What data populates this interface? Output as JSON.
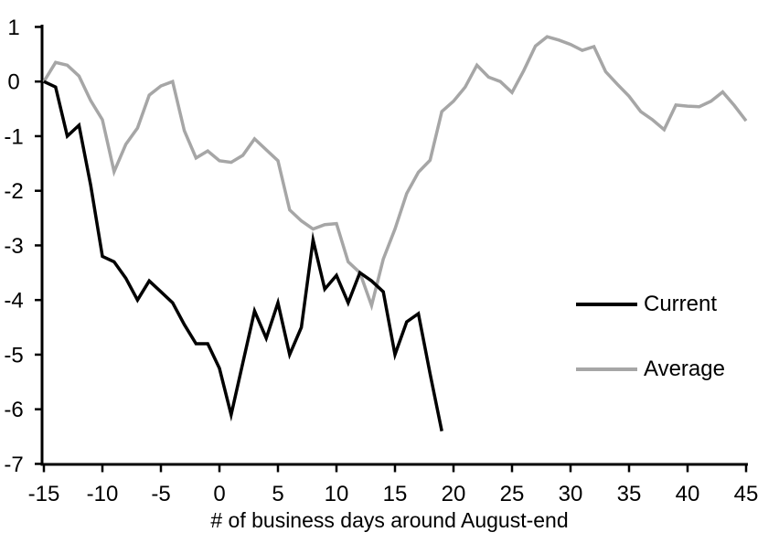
{
  "background": "#ffffff",
  "chart_data": {
    "type": "line",
    "title": "",
    "xlabel": "# of business days around August-end",
    "ylabel": "",
    "xlim": [
      -15,
      45
    ],
    "ylim": [
      -7,
      1
    ],
    "x_ticks": [
      -15,
      -10,
      -5,
      0,
      5,
      10,
      15,
      20,
      25,
      30,
      35,
      40,
      45
    ],
    "y_ticks": [
      1,
      0,
      -1,
      -2,
      -3,
      -4,
      -5,
      -6,
      -7
    ],
    "grid": false,
    "legend_position": "middle-right",
    "axis_color": "#000000",
    "series": [
      {
        "name": "Current",
        "color": "#000000",
        "x": [
          -15,
          -14,
          -13,
          -12,
          -11,
          -10,
          -9,
          -8,
          -7,
          -6,
          -5,
          -4,
          -3,
          -2,
          -1,
          0,
          1,
          2,
          3,
          4,
          5,
          6,
          7,
          8,
          9,
          10,
          11,
          12,
          13,
          14,
          15,
          16,
          17,
          18,
          19
        ],
        "values": [
          0,
          -0.1,
          -1.0,
          -0.8,
          -1.9,
          -3.2,
          -3.3,
          -3.6,
          -4.0,
          -3.65,
          -3.85,
          -4.05,
          -4.45,
          -4.8,
          -4.8,
          -5.25,
          -6.1,
          -5.15,
          -4.2,
          -4.7,
          -4.05,
          -5.0,
          -4.5,
          -2.9,
          -3.8,
          -3.55,
          -4.05,
          -3.5,
          -3.65,
          -3.85,
          -5.0,
          -4.4,
          -4.25,
          -5.35,
          -6.4
        ]
      },
      {
        "name": "Average",
        "color": "#a6a6a6",
        "x": [
          -15,
          -14,
          -13,
          -12,
          -11,
          -10,
          -9,
          -8,
          -7,
          -6,
          -5,
          -4,
          -3,
          -2,
          -1,
          0,
          1,
          2,
          3,
          4,
          5,
          6,
          7,
          8,
          9,
          10,
          11,
          12,
          13,
          14,
          15,
          16,
          17,
          18,
          19,
          20,
          21,
          22,
          23,
          24,
          25,
          26,
          27,
          28,
          29,
          30,
          31,
          32,
          33,
          34,
          35,
          36,
          37,
          38,
          39,
          40,
          41,
          42,
          43,
          44,
          45
        ],
        "values": [
          0,
          0.35,
          0.3,
          0.1,
          -0.35,
          -0.7,
          -1.65,
          -1.15,
          -0.85,
          -0.25,
          -0.08,
          0,
          -0.9,
          -1.4,
          -1.27,
          -1.45,
          -1.48,
          -1.35,
          -1.05,
          -1.25,
          -1.45,
          -2.35,
          -2.55,
          -2.7,
          -2.62,
          -2.6,
          -3.3,
          -3.5,
          -4.1,
          -3.25,
          -2.7,
          -2.05,
          -1.66,
          -1.44,
          -0.55,
          -0.36,
          -0.1,
          0.3,
          0.08,
          0,
          -0.2,
          0.2,
          0.65,
          0.82,
          0.76,
          0.68,
          0.57,
          0.64,
          0.18,
          -0.05,
          -0.27,
          -0.55,
          -0.7,
          -0.88,
          -0.43,
          -0.45,
          -0.46,
          -0.36,
          -0.19,
          -0.44,
          -0.72
        ]
      }
    ]
  },
  "legend": {
    "current_label": "Current",
    "average_label": "Average"
  }
}
